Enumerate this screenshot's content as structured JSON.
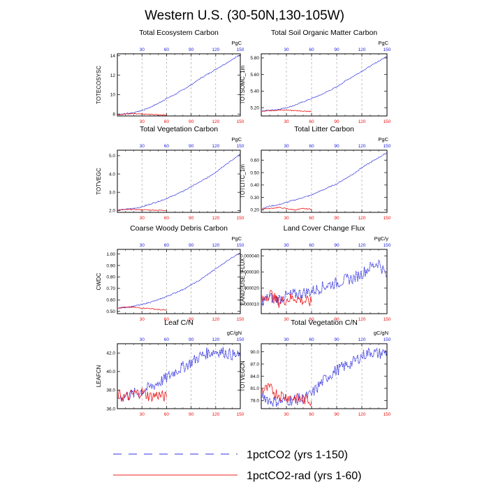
{
  "page_title": "Western U.S. (30-50N,130-105W)",
  "legend": {
    "items": [
      {
        "label": "1pctCO2 (yrs 1-150)",
        "color": "#3333dd",
        "style": "dashed"
      },
      {
        "label": "1pctCO2-rad (yrs 1-60)",
        "color": "#ee2222",
        "style": "solid"
      }
    ]
  },
  "colors": {
    "blue": "#2222dd",
    "red": "#ee1111",
    "axis": "#000000",
    "grid": "#999999"
  },
  "chart_data": [
    {
      "type": "line",
      "title": "Total Ecosystem Carbon",
      "ylabel": "TOTECOSYSC",
      "units": "PgC",
      "xlim": [
        0,
        150
      ],
      "ylim": [
        7.8,
        14.2
      ],
      "xticks": [
        "30",
        "60",
        "90",
        "120",
        "150"
      ],
      "yticks": [
        "8",
        "10",
        "12",
        "14"
      ],
      "ytick_values": [
        8,
        10,
        12,
        14
      ],
      "grid_x": [
        30,
        60,
        90,
        120
      ],
      "series": [
        {
          "color": "blue",
          "x": [
            1,
            10,
            20,
            30,
            40,
            50,
            60,
            70,
            80,
            90,
            100,
            110,
            120,
            130,
            140,
            150
          ],
          "y": [
            7.95,
            8.05,
            8.15,
            8.35,
            8.7,
            9.1,
            9.6,
            10.0,
            10.5,
            11.0,
            11.6,
            12.1,
            12.6,
            13.1,
            13.6,
            14.1
          ]
        },
        {
          "color": "red",
          "x": [
            1,
            10,
            20,
            30,
            40,
            50,
            60
          ],
          "y": [
            7.95,
            8.0,
            8.02,
            7.98,
            7.96,
            7.92,
            7.9
          ]
        }
      ]
    },
    {
      "type": "line",
      "title": "Total Soil Organic Matter Carbon",
      "ylabel": "TOTSOMC_1m",
      "units": "PgC",
      "xlim": [
        0,
        150
      ],
      "ylim": [
        5.1,
        5.85
      ],
      "xticks": [
        "30",
        "60",
        "90",
        "120",
        "150"
      ],
      "yticks": [
        "5.20",
        "5.40",
        "5.60",
        "5.80"
      ],
      "ytick_values": [
        5.2,
        5.4,
        5.6,
        5.8
      ],
      "grid_x": [
        30,
        60,
        90,
        120
      ],
      "series": [
        {
          "color": "blue",
          "x": [
            1,
            10,
            20,
            30,
            40,
            50,
            60,
            70,
            80,
            90,
            100,
            110,
            120,
            130,
            140,
            150
          ],
          "y": [
            5.16,
            5.17,
            5.18,
            5.2,
            5.23,
            5.27,
            5.31,
            5.35,
            5.4,
            5.45,
            5.52,
            5.58,
            5.64,
            5.7,
            5.76,
            5.82
          ]
        },
        {
          "color": "red",
          "x": [
            1,
            10,
            20,
            30,
            40,
            50,
            60
          ],
          "y": [
            5.16,
            5.165,
            5.17,
            5.17,
            5.165,
            5.16,
            5.155
          ]
        }
      ]
    },
    {
      "type": "line",
      "title": "Total Vegetation Carbon",
      "ylabel": "TOTVEGC",
      "units": "PgC",
      "xlim": [
        0,
        150
      ],
      "ylim": [
        1.9,
        5.3
      ],
      "xticks": [
        "30",
        "60",
        "90",
        "120",
        "150"
      ],
      "yticks": [
        "2.0",
        "3.0",
        "4.0",
        "5.0"
      ],
      "ytick_values": [
        2,
        3,
        4,
        5
      ],
      "grid_x": [
        30,
        60,
        90,
        120
      ],
      "series": [
        {
          "color": "blue",
          "x": [
            1,
            10,
            20,
            30,
            40,
            50,
            60,
            70,
            80,
            90,
            100,
            110,
            120,
            130,
            140,
            150
          ],
          "y": [
            2.02,
            2.07,
            2.12,
            2.2,
            2.35,
            2.5,
            2.65,
            2.85,
            3.05,
            3.3,
            3.55,
            3.8,
            4.1,
            4.45,
            4.75,
            5.1
          ]
        },
        {
          "color": "red",
          "x": [
            1,
            10,
            20,
            30,
            40,
            50,
            60
          ],
          "y": [
            2.02,
            2.05,
            2.06,
            2.04,
            2.03,
            2.02,
            2.01
          ]
        }
      ]
    },
    {
      "type": "line",
      "title": "Total Litter Carbon",
      "ylabel": "TOTLITC_1m",
      "units": "PgC",
      "xlim": [
        0,
        150
      ],
      "ylim": [
        0.18,
        0.68
      ],
      "xticks": [
        "30",
        "60",
        "90",
        "120",
        "150"
      ],
      "yticks": [
        "0.20",
        "0.30",
        "0.40",
        "0.50",
        "0.60"
      ],
      "ytick_values": [
        0.2,
        0.3,
        0.4,
        0.5,
        0.6
      ],
      "grid_x": [
        30,
        60,
        90,
        120
      ],
      "series": [
        {
          "color": "blue",
          "x": [
            1,
            10,
            20,
            30,
            40,
            50,
            60,
            70,
            80,
            90,
            100,
            110,
            120,
            130,
            140,
            150
          ],
          "y": [
            0.21,
            0.23,
            0.24,
            0.26,
            0.28,
            0.3,
            0.32,
            0.35,
            0.38,
            0.41,
            0.45,
            0.49,
            0.54,
            0.58,
            0.62,
            0.66
          ]
        },
        {
          "color": "red",
          "x": [
            1,
            10,
            20,
            30,
            40,
            50,
            60
          ],
          "y": [
            0.21,
            0.21,
            0.22,
            0.21,
            0.2,
            0.21,
            0.205
          ]
        }
      ]
    },
    {
      "type": "line",
      "title": "Coarse Woody Debris Carbon",
      "ylabel": "CWDC",
      "units": "PgC",
      "xlim": [
        0,
        150
      ],
      "ylim": [
        0.48,
        1.04
      ],
      "xticks": [
        "30",
        "60",
        "90",
        "120",
        "150"
      ],
      "yticks": [
        "0.50",
        "0.60",
        "0.70",
        "0.80",
        "0.90",
        "1.00"
      ],
      "ytick_values": [
        0.5,
        0.6,
        0.7,
        0.8,
        0.9,
        1.0
      ],
      "grid_x": [
        30,
        60,
        90,
        120
      ],
      "series": [
        {
          "color": "blue",
          "x": [
            1,
            10,
            20,
            30,
            40,
            50,
            60,
            70,
            80,
            90,
            100,
            110,
            120,
            130,
            140,
            150
          ],
          "y": [
            0.53,
            0.535,
            0.545,
            0.56,
            0.58,
            0.6,
            0.63,
            0.66,
            0.69,
            0.73,
            0.77,
            0.82,
            0.87,
            0.92,
            0.97,
            1.01
          ]
        },
        {
          "color": "red",
          "x": [
            1,
            10,
            20,
            30,
            40,
            50,
            60
          ],
          "y": [
            0.53,
            0.535,
            0.535,
            0.53,
            0.525,
            0.515,
            0.51
          ]
        }
      ]
    },
    {
      "type": "line",
      "title": "Land Cover Change Flux",
      "ylabel": "LAND_USE_FLUX",
      "units": "PgC/y",
      "xlim": [
        0,
        150
      ],
      "ylim": [
        4e-06,
        4.4e-05
      ],
      "xticks": [
        "30",
        "60",
        "90",
        "120",
        "150"
      ],
      "yticks": [
        "0.000010",
        "0.000020",
        "0.000030",
        "0.000040"
      ],
      "ytick_values": [
        1e-05,
        2e-05,
        3e-05,
        4e-05
      ],
      "grid_x": [
        30,
        60,
        90,
        120
      ],
      "series": [
        {
          "color": "blue",
          "x": [
            1,
            10,
            20,
            30,
            40,
            50,
            60,
            70,
            80,
            90,
            100,
            110,
            120,
            130,
            140,
            150
          ],
          "y": [
            1.2e-05,
            1.4e-05,
            1.3e-05,
            1.5e-05,
            1.6e-05,
            1.7e-05,
            1.8e-05,
            2e-05,
            2.2e-05,
            2.3e-05,
            2.5e-05,
            2.6e-05,
            2.9e-05,
            3.3e-05,
            3.6e-05,
            2.7e-05
          ]
        },
        {
          "color": "red",
          "x": [
            1,
            10,
            20,
            30,
            40,
            50,
            60
          ],
          "y": [
            1.2e-05,
            1.7e-05,
            1.1e-05,
            1.3e-05,
            1.4e-05,
            1.2e-05,
            1.1e-05
          ]
        }
      ]
    },
    {
      "type": "line",
      "title": "Leaf C/N",
      "ylabel": "LEAFCN",
      "units": "gC/gN",
      "xlim": [
        0,
        150
      ],
      "ylim": [
        36,
        43
      ],
      "xticks": [
        "30",
        "60",
        "90",
        "120",
        "150"
      ],
      "yticks": [
        "36.0",
        "38.0",
        "40.0",
        "42.0"
      ],
      "ytick_values": [
        36,
        38,
        40,
        42
      ],
      "grid_x": [
        30,
        60,
        90,
        120
      ],
      "series": [
        {
          "color": "blue",
          "x": [
            1,
            10,
            20,
            30,
            40,
            50,
            60,
            70,
            80,
            90,
            100,
            110,
            120,
            130,
            140,
            150
          ],
          "y": [
            37.2,
            37.4,
            37.6,
            37.9,
            38.3,
            38.8,
            39.3,
            40.0,
            40.5,
            41.0,
            41.6,
            42.0,
            42.2,
            42.1,
            41.8,
            41.6
          ]
        },
        {
          "color": "red",
          "x": [
            1,
            10,
            20,
            30,
            40,
            50,
            60
          ],
          "y": [
            37.5,
            37.2,
            37.6,
            37.8,
            37.3,
            37.5,
            37.2
          ]
        }
      ]
    },
    {
      "type": "line",
      "title": "Total Vegetation C/N",
      "ylabel": "TOTVEGCN",
      "units": "gC/gN",
      "xlim": [
        0,
        150
      ],
      "ylim": [
        76,
        92
      ],
      "xticks": [
        "30",
        "60",
        "90",
        "120",
        "150"
      ],
      "yticks": [
        "78.0",
        "81.0",
        "84.0",
        "87.0",
        "90.0"
      ],
      "ytick_values": [
        78,
        81,
        84,
        87,
        90
      ],
      "grid_x": [
        30,
        60,
        90,
        120
      ],
      "series": [
        {
          "color": "blue",
          "x": [
            1,
            10,
            20,
            30,
            40,
            50,
            60,
            70,
            80,
            90,
            100,
            110,
            120,
            130,
            140,
            150
          ],
          "y": [
            79.5,
            78.0,
            77.8,
            78.0,
            78.2,
            78.5,
            79.5,
            82.0,
            84.0,
            85.5,
            86.5,
            87.5,
            89.0,
            90.0,
            89.5,
            90.0
          ]
        },
        {
          "color": "red",
          "x": [
            1,
            10,
            20,
            30,
            40,
            50,
            60
          ],
          "y": [
            80.5,
            81.0,
            79.5,
            79.0,
            78.5,
            78.3,
            78.0
          ]
        }
      ]
    }
  ]
}
